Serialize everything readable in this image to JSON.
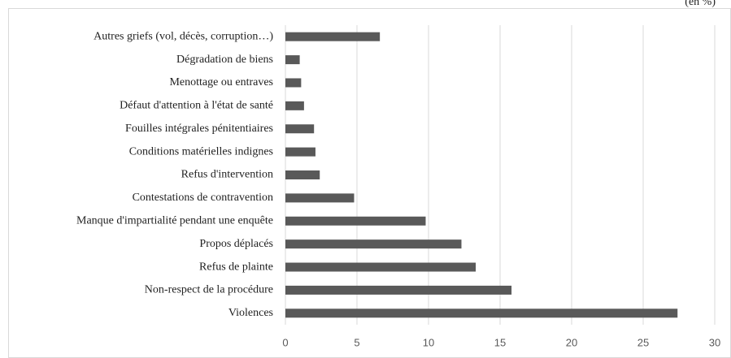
{
  "chart_data": {
    "type": "bar",
    "orientation": "horizontal",
    "subtitle": "(en %)",
    "categories": [
      "Violences",
      "Non-respect de la procédure",
      "Refus de plainte",
      "Propos déplacés",
      "Manque d'impartialité pendant une enquête",
      "Contestations de contravention",
      "Refus d'intervention",
      "Conditions matérielles indignes",
      "Fouilles intégrales pénitentiaires",
      "Défaut d'attention à l'état de santé",
      "Menottage ou entraves",
      "Dégradation de biens",
      "Autres griefs (vol, décès, corruption…)"
    ],
    "values": [
      27.4,
      15.8,
      13.3,
      12.3,
      9.8,
      4.8,
      2.4,
      2.1,
      2.0,
      1.3,
      1.1,
      1.0,
      6.6
    ],
    "color": "#595959",
    "xlim": [
      0,
      30
    ],
    "xticks": [
      0,
      5,
      10,
      15,
      20,
      25,
      30
    ],
    "grid": true
  }
}
